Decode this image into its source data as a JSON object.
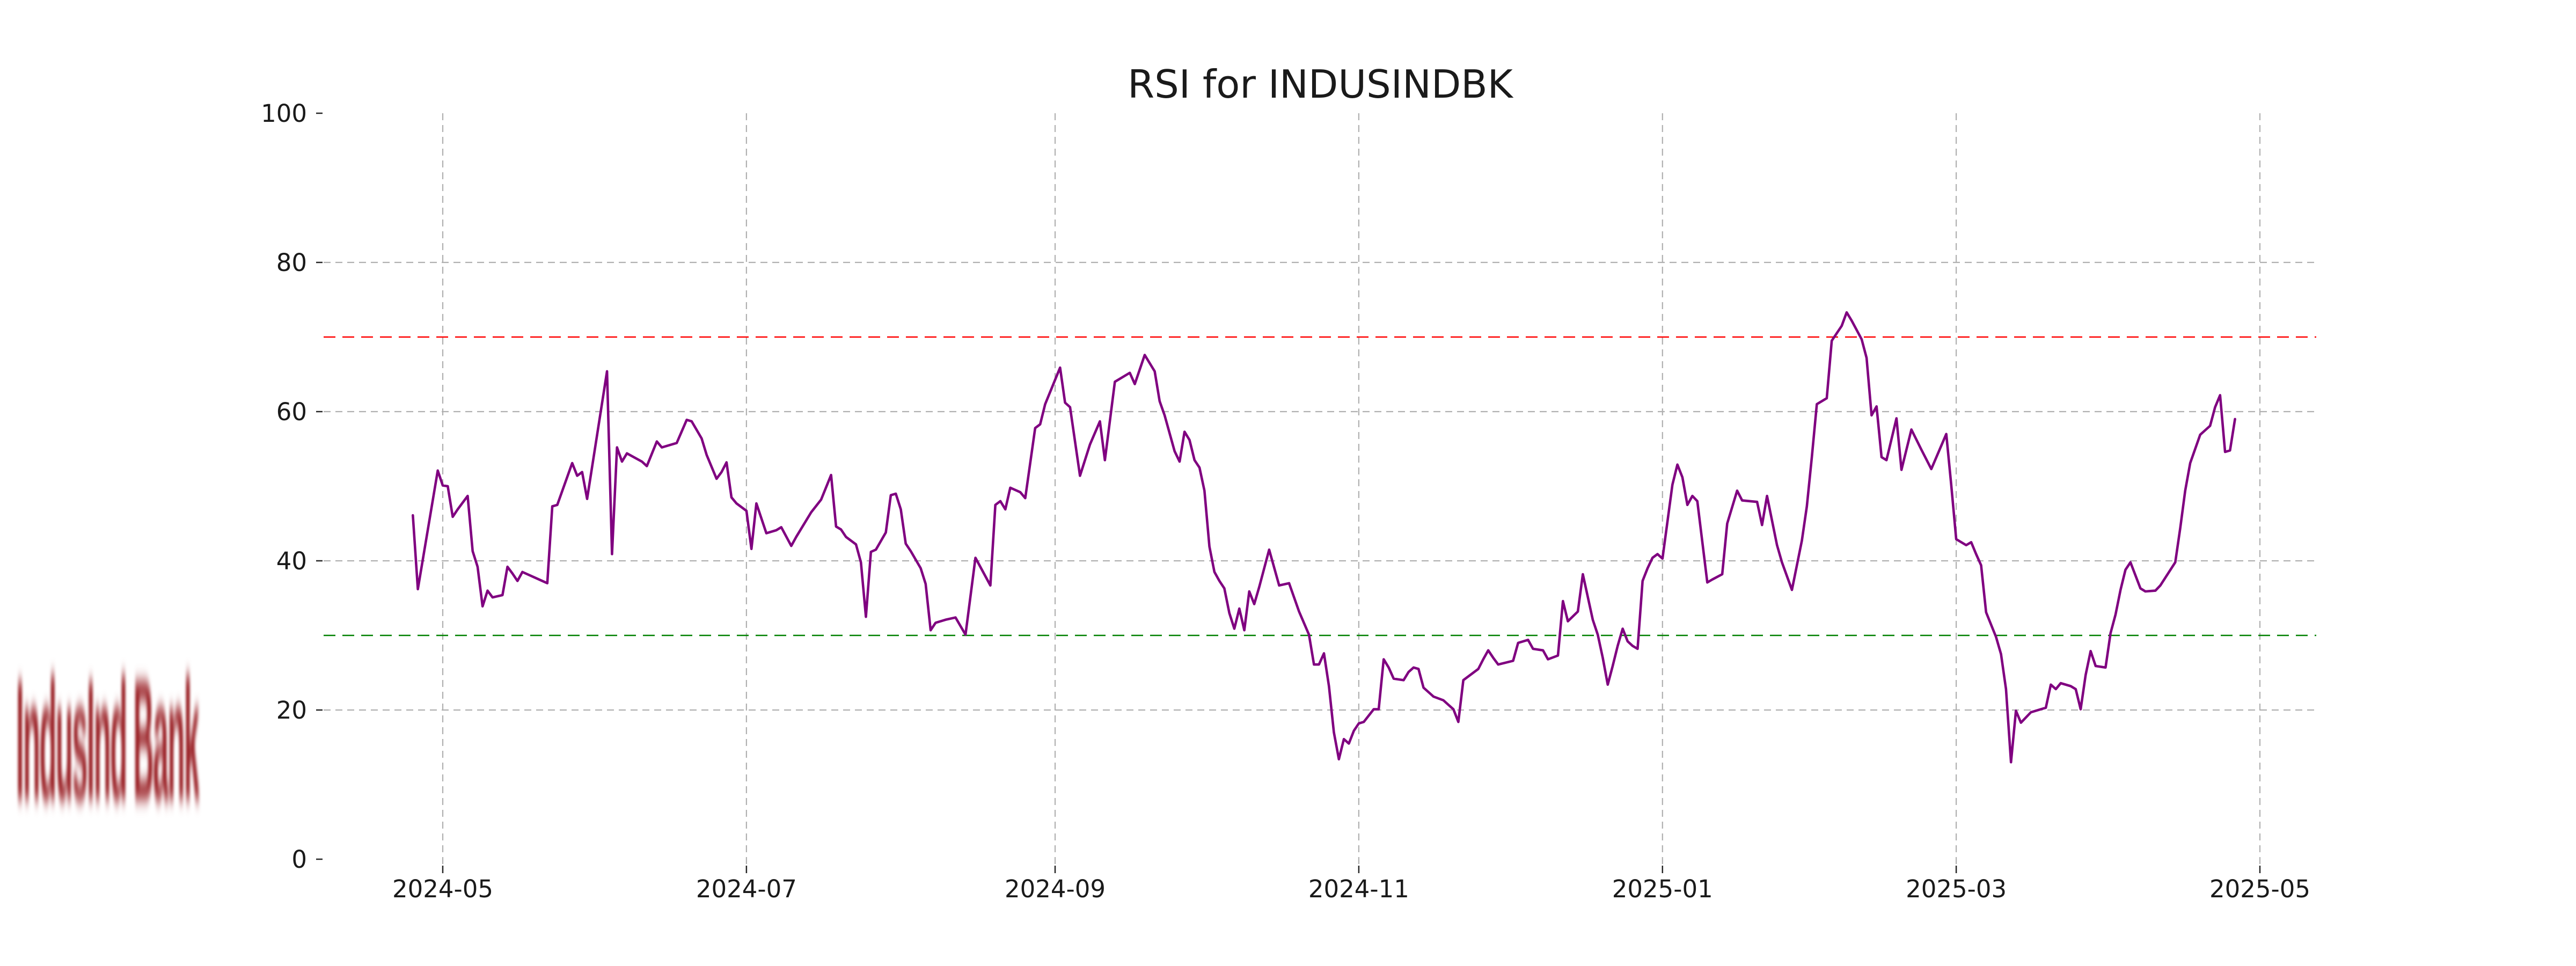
{
  "page": {
    "background": "#ffffff"
  },
  "logo": {
    "text": "IndusInd Bank",
    "color": "#9b2227"
  },
  "chart_data": {
    "type": "line",
    "title": "RSI for INDUSINDBK",
    "series_name": "RSI",
    "line_color": "#800080",
    "grid": true,
    "grid_color": "#b0b0b0",
    "text_color": "#1a1a1a",
    "ylim": [
      0,
      100
    ],
    "y_ticks": [
      0,
      20,
      40,
      60,
      80,
      100
    ],
    "y_grid_values": [
      20,
      40,
      60,
      80
    ],
    "x_ticks": [
      {
        "label": "2024-05",
        "date": "2024-05-01"
      },
      {
        "label": "2024-07",
        "date": "2024-07-01"
      },
      {
        "label": "2024-09",
        "date": "2024-09-01"
      },
      {
        "label": "2024-11",
        "date": "2024-11-01"
      },
      {
        "label": "2025-01",
        "date": "2025-01-01"
      },
      {
        "label": "2025-03",
        "date": "2025-03-01"
      },
      {
        "label": "2025-05",
        "date": "2025-05-01"
      }
    ],
    "reference_lines": [
      {
        "value": 70,
        "color": "#ff0000"
      },
      {
        "value": 30,
        "color": "#008000"
      }
    ],
    "points": [
      [
        "2024-04-25",
        46.1
      ],
      [
        "2024-04-26",
        36.2
      ],
      [
        "2024-04-30",
        52.1
      ],
      [
        "2024-05-01",
        50.1
      ],
      [
        "2024-05-02",
        50.0
      ],
      [
        "2024-05-03",
        45.9
      ],
      [
        "2024-05-04",
        46.9
      ],
      [
        "2024-05-06",
        48.7
      ],
      [
        "2024-05-07",
        41.3
      ],
      [
        "2024-05-08",
        39.2
      ],
      [
        "2024-05-09",
        33.9
      ],
      [
        "2024-05-10",
        36.0
      ],
      [
        "2024-05-11",
        35.1
      ],
      [
        "2024-05-13",
        35.4
      ],
      [
        "2024-05-14",
        39.2
      ],
      [
        "2024-05-15",
        38.3
      ],
      [
        "2024-05-16",
        37.3
      ],
      [
        "2024-05-17",
        38.5
      ],
      [
        "2024-05-22",
        37.0
      ],
      [
        "2024-05-23",
        47.3
      ],
      [
        "2024-05-24",
        47.5
      ],
      [
        "2024-05-27",
        53.1
      ],
      [
        "2024-05-28",
        51.4
      ],
      [
        "2024-05-29",
        51.9
      ],
      [
        "2024-05-30",
        48.3
      ],
      [
        "2024-06-03",
        65.4
      ],
      [
        "2024-06-04",
        40.9
      ],
      [
        "2024-06-05",
        55.2
      ],
      [
        "2024-06-06",
        53.3
      ],
      [
        "2024-06-07",
        54.4
      ],
      [
        "2024-06-10",
        53.3
      ],
      [
        "2024-06-11",
        52.7
      ],
      [
        "2024-06-13",
        56.0
      ],
      [
        "2024-06-14",
        55.2
      ],
      [
        "2024-06-16",
        55.6
      ],
      [
        "2024-06-17",
        55.8
      ],
      [
        "2024-06-19",
        58.9
      ],
      [
        "2024-06-20",
        58.7
      ],
      [
        "2024-06-22",
        56.4
      ],
      [
        "2024-06-23",
        54.2
      ],
      [
        "2024-06-25",
        51.0
      ],
      [
        "2024-06-26",
        51.9
      ],
      [
        "2024-06-27",
        53.2
      ],
      [
        "2024-06-28",
        48.5
      ],
      [
        "2024-06-29",
        47.7
      ],
      [
        "2024-07-01",
        46.7
      ],
      [
        "2024-07-02",
        41.6
      ],
      [
        "2024-07-03",
        47.7
      ],
      [
        "2024-07-05",
        43.7
      ],
      [
        "2024-07-07",
        44.1
      ],
      [
        "2024-07-08",
        44.5
      ],
      [
        "2024-07-10",
        42.0
      ],
      [
        "2024-07-11",
        43.2
      ],
      [
        "2024-07-14",
        46.5
      ],
      [
        "2024-07-16",
        48.2
      ],
      [
        "2024-07-18",
        51.5
      ],
      [
        "2024-07-19",
        44.6
      ],
      [
        "2024-07-20",
        44.2
      ],
      [
        "2024-07-21",
        43.2
      ],
      [
        "2024-07-23",
        42.2
      ],
      [
        "2024-07-24",
        39.8
      ],
      [
        "2024-07-25",
        32.5
      ],
      [
        "2024-07-26",
        41.2
      ],
      [
        "2024-07-27",
        41.5
      ],
      [
        "2024-07-29",
        43.8
      ],
      [
        "2024-07-30",
        48.8
      ],
      [
        "2024-07-31",
        49.0
      ],
      [
        "2024-08-01",
        46.9
      ],
      [
        "2024-08-02",
        42.3
      ],
      [
        "2024-08-03",
        41.3
      ],
      [
        "2024-08-05",
        39.0
      ],
      [
        "2024-08-06",
        36.9
      ],
      [
        "2024-08-07",
        30.7
      ],
      [
        "2024-08-08",
        31.7
      ],
      [
        "2024-08-10",
        32.1
      ],
      [
        "2024-08-12",
        32.4
      ],
      [
        "2024-08-14",
        30.1
      ],
      [
        "2024-08-16",
        40.4
      ],
      [
        "2024-08-19",
        36.7
      ],
      [
        "2024-08-20",
        47.5
      ],
      [
        "2024-08-21",
        48.0
      ],
      [
        "2024-08-22",
        46.9
      ],
      [
        "2024-08-23",
        49.8
      ],
      [
        "2024-08-25",
        49.2
      ],
      [
        "2024-08-26",
        48.4
      ],
      [
        "2024-08-28",
        57.8
      ],
      [
        "2024-08-29",
        58.3
      ],
      [
        "2024-08-30",
        61.0
      ],
      [
        "2024-09-02",
        65.9
      ],
      [
        "2024-09-03",
        61.2
      ],
      [
        "2024-09-04",
        60.6
      ],
      [
        "2024-09-06",
        51.4
      ],
      [
        "2024-09-08",
        55.6
      ],
      [
        "2024-09-10",
        58.7
      ],
      [
        "2024-09-11",
        53.5
      ],
      [
        "2024-09-13",
        64.0
      ],
      [
        "2024-09-16",
        65.2
      ],
      [
        "2024-09-17",
        63.7
      ],
      [
        "2024-09-19",
        67.6
      ],
      [
        "2024-09-21",
        65.4
      ],
      [
        "2024-09-22",
        61.4
      ],
      [
        "2024-09-23",
        59.5
      ],
      [
        "2024-09-25",
        54.7
      ],
      [
        "2024-09-26",
        53.3
      ],
      [
        "2024-09-27",
        57.3
      ],
      [
        "2024-09-28",
        56.2
      ],
      [
        "2024-09-29",
        53.5
      ],
      [
        "2024-09-30",
        52.5
      ],
      [
        "2024-10-01",
        49.4
      ],
      [
        "2024-10-02",
        41.9
      ],
      [
        "2024-10-03",
        38.5
      ],
      [
        "2024-10-04",
        37.3
      ],
      [
        "2024-10-05",
        36.3
      ],
      [
        "2024-10-06",
        33.0
      ],
      [
        "2024-10-07",
        30.9
      ],
      [
        "2024-10-08",
        33.6
      ],
      [
        "2024-10-09",
        30.7
      ],
      [
        "2024-10-10",
        35.9
      ],
      [
        "2024-10-11",
        34.2
      ],
      [
        "2024-10-12",
        36.5
      ],
      [
        "2024-10-14",
        41.5
      ],
      [
        "2024-10-16",
        36.7
      ],
      [
        "2024-10-18",
        37.0
      ],
      [
        "2024-10-20",
        33.2
      ],
      [
        "2024-10-22",
        30.1
      ],
      [
        "2024-10-23",
        26.1
      ],
      [
        "2024-10-24",
        26.1
      ],
      [
        "2024-10-25",
        27.6
      ],
      [
        "2024-10-26",
        23.2
      ],
      [
        "2024-10-27",
        17.0
      ],
      [
        "2024-10-28",
        13.4
      ],
      [
        "2024-10-29",
        16.1
      ],
      [
        "2024-10-30",
        15.5
      ],
      [
        "2024-10-31",
        17.2
      ],
      [
        "2024-11-01",
        18.2
      ],
      [
        "2024-11-02",
        18.4
      ],
      [
        "2024-11-04",
        20.1
      ],
      [
        "2024-11-05",
        20.1
      ],
      [
        "2024-11-06",
        26.8
      ],
      [
        "2024-11-07",
        25.7
      ],
      [
        "2024-11-08",
        24.2
      ],
      [
        "2024-11-10",
        24.0
      ],
      [
        "2024-11-11",
        25.1
      ],
      [
        "2024-11-12",
        25.7
      ],
      [
        "2024-11-13",
        25.5
      ],
      [
        "2024-11-14",
        23.0
      ],
      [
        "2024-11-16",
        21.8
      ],
      [
        "2024-11-18",
        21.3
      ],
      [
        "2024-11-19",
        20.7
      ],
      [
        "2024-11-20",
        20.1
      ],
      [
        "2024-11-21",
        18.4
      ],
      [
        "2024-11-22",
        24.0
      ],
      [
        "2024-11-25",
        25.5
      ],
      [
        "2024-11-26",
        26.8
      ],
      [
        "2024-11-27",
        28.0
      ],
      [
        "2024-11-28",
        27.0
      ],
      [
        "2024-11-29",
        26.1
      ],
      [
        "2024-12-02",
        26.6
      ],
      [
        "2024-12-03",
        29.0
      ],
      [
        "2024-12-05",
        29.4
      ],
      [
        "2024-12-06",
        28.2
      ],
      [
        "2024-12-08",
        28.0
      ],
      [
        "2024-12-09",
        26.8
      ],
      [
        "2024-12-11",
        27.3
      ],
      [
        "2024-12-12",
        34.6
      ],
      [
        "2024-12-13",
        31.9
      ],
      [
        "2024-12-15",
        33.2
      ],
      [
        "2024-12-16",
        38.2
      ],
      [
        "2024-12-18",
        32.1
      ],
      [
        "2024-12-19",
        30.1
      ],
      [
        "2024-12-20",
        27.0
      ],
      [
        "2024-12-21",
        23.4
      ],
      [
        "2024-12-22",
        25.9
      ],
      [
        "2024-12-23",
        28.6
      ],
      [
        "2024-12-24",
        30.9
      ],
      [
        "2024-12-25",
        29.2
      ],
      [
        "2024-12-26",
        28.6
      ],
      [
        "2024-12-27",
        28.2
      ],
      [
        "2024-12-28",
        37.3
      ],
      [
        "2024-12-29",
        39.0
      ],
      [
        "2024-12-30",
        40.4
      ],
      [
        "2024-12-31",
        40.9
      ],
      [
        "2025-01-01",
        40.3
      ],
      [
        "2025-01-03",
        50.2
      ],
      [
        "2025-01-04",
        52.9
      ],
      [
        "2025-01-05",
        51.2
      ],
      [
        "2025-01-06",
        47.5
      ],
      [
        "2025-01-07",
        48.7
      ],
      [
        "2025-01-08",
        48.0
      ],
      [
        "2025-01-10",
        37.1
      ],
      [
        "2025-01-11",
        37.5
      ],
      [
        "2025-01-13",
        38.2
      ],
      [
        "2025-01-14",
        45.0
      ],
      [
        "2025-01-16",
        49.4
      ],
      [
        "2025-01-17",
        48.1
      ],
      [
        "2025-01-20",
        47.9
      ],
      [
        "2025-01-21",
        44.8
      ],
      [
        "2025-01-22",
        48.7
      ],
      [
        "2025-01-24",
        42.1
      ],
      [
        "2025-01-25",
        39.8
      ],
      [
        "2025-01-27",
        36.1
      ],
      [
        "2025-01-29",
        42.7
      ],
      [
        "2025-01-30",
        47.3
      ],
      [
        "2025-01-31",
        53.9
      ],
      [
        "2025-02-01",
        61.0
      ],
      [
        "2025-02-03",
        61.8
      ],
      [
        "2025-02-04",
        69.5
      ],
      [
        "2025-02-06",
        71.5
      ],
      [
        "2025-02-07",
        73.3
      ],
      [
        "2025-02-08",
        72.2
      ],
      [
        "2025-02-10",
        69.7
      ],
      [
        "2025-02-11",
        67.2
      ],
      [
        "2025-02-12",
        59.5
      ],
      [
        "2025-02-13",
        60.7
      ],
      [
        "2025-02-14",
        53.9
      ],
      [
        "2025-02-15",
        53.5
      ],
      [
        "2025-02-17",
        59.1
      ],
      [
        "2025-02-18",
        52.2
      ],
      [
        "2025-02-20",
        57.6
      ],
      [
        "2025-02-22",
        54.9
      ],
      [
        "2025-02-24",
        52.3
      ],
      [
        "2025-02-27",
        57.0
      ],
      [
        "2025-02-28",
        50.2
      ],
      [
        "2025-03-01",
        42.9
      ],
      [
        "2025-03-03",
        42.1
      ],
      [
        "2025-03-04",
        42.5
      ],
      [
        "2025-03-05",
        40.9
      ],
      [
        "2025-03-06",
        39.4
      ],
      [
        "2025-03-07",
        33.1
      ],
      [
        "2025-03-09",
        29.8
      ],
      [
        "2025-03-10",
        27.5
      ],
      [
        "2025-03-11",
        22.8
      ],
      [
        "2025-03-12",
        13.0
      ],
      [
        "2025-03-13",
        19.9
      ],
      [
        "2025-03-14",
        18.3
      ],
      [
        "2025-03-16",
        19.7
      ],
      [
        "2025-03-18",
        20.1
      ],
      [
        "2025-03-19",
        20.3
      ],
      [
        "2025-03-20",
        23.4
      ],
      [
        "2025-03-21",
        22.8
      ],
      [
        "2025-03-22",
        23.6
      ],
      [
        "2025-03-24",
        23.2
      ],
      [
        "2025-03-25",
        22.8
      ],
      [
        "2025-03-26",
        20.1
      ],
      [
        "2025-03-27",
        24.7
      ],
      [
        "2025-03-28",
        27.9
      ],
      [
        "2025-03-29",
        25.9
      ],
      [
        "2025-03-31",
        25.7
      ],
      [
        "2025-04-01",
        30.3
      ],
      [
        "2025-04-02",
        32.8
      ],
      [
        "2025-04-03",
        36.1
      ],
      [
        "2025-04-04",
        38.8
      ],
      [
        "2025-04-05",
        39.8
      ],
      [
        "2025-04-07",
        36.3
      ],
      [
        "2025-04-08",
        35.9
      ],
      [
        "2025-04-10",
        36.0
      ],
      [
        "2025-04-11",
        36.7
      ],
      [
        "2025-04-14",
        39.8
      ],
      [
        "2025-04-15",
        44.4
      ],
      [
        "2025-04-16",
        49.4
      ],
      [
        "2025-04-17",
        53.1
      ],
      [
        "2025-04-19",
        56.9
      ],
      [
        "2025-04-21",
        58.1
      ],
      [
        "2025-04-22",
        60.6
      ],
      [
        "2025-04-23",
        62.2
      ],
      [
        "2025-04-24",
        54.6
      ],
      [
        "2025-04-25",
        54.8
      ],
      [
        "2025-04-26",
        59.0
      ]
    ]
  }
}
